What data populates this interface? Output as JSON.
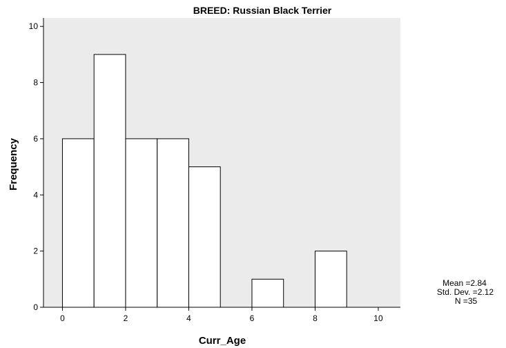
{
  "chart_data": {
    "type": "bar",
    "subtype": "histogram",
    "title": "BREED: Russian Black Terrier",
    "xlabel": "Curr_Age",
    "ylabel": "Frequency",
    "bins": [
      {
        "start": 0,
        "end": 1,
        "count": 6
      },
      {
        "start": 1,
        "end": 2,
        "count": 9
      },
      {
        "start": 2,
        "end": 3,
        "count": 6
      },
      {
        "start": 3,
        "end": 4,
        "count": 6
      },
      {
        "start": 4,
        "end": 5,
        "count": 5
      },
      {
        "start": 5,
        "end": 6,
        "count": 0
      },
      {
        "start": 6,
        "end": 7,
        "count": 1
      },
      {
        "start": 7,
        "end": 8,
        "count": 0
      },
      {
        "start": 8,
        "end": 9,
        "count": 2
      },
      {
        "start": 9,
        "end": 10,
        "count": 0
      }
    ],
    "xlim": [
      -0.6,
      10.7
    ],
    "ylim": [
      0,
      10.3
    ],
    "xticks": [
      "0",
      "2",
      "4",
      "6",
      "8",
      "10"
    ],
    "yticks": [
      "0",
      "2",
      "4",
      "6",
      "8",
      "10"
    ],
    "stats": {
      "mean": "Mean =2.84",
      "std_dev": "Std. Dev. =2.12",
      "n": "N =35"
    },
    "grid": false,
    "plot_background": "#ebebeb",
    "bar_fill": "#ffffff",
    "bar_edge": "#000000"
  }
}
